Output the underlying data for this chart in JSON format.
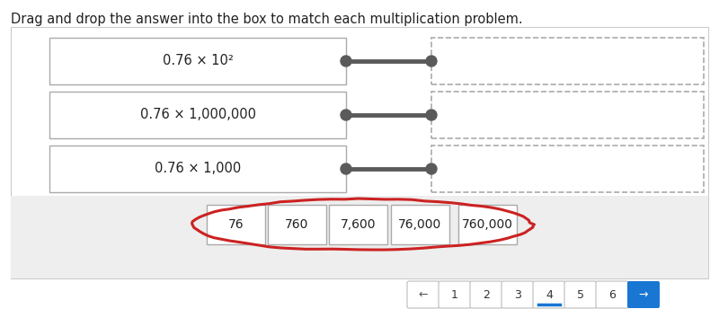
{
  "title": "Drag and drop the answer into the box to match each multiplication problem.",
  "title_fontsize": 10.5,
  "bg_color": "#ffffff",
  "problems": [
    "0.76 × 10²",
    "0.76 × 1,000,000",
    "0.76 × 1,000"
  ],
  "answer_labels": [
    "76",
    "760",
    "7,600",
    "76,000",
    "760,000"
  ],
  "nav_buttons": [
    "1",
    "2",
    "3",
    "4",
    "5",
    "6"
  ],
  "active_nav": 3,
  "nav_color": "#1976d2",
  "connector_color": "#5a5a5a",
  "box_border_color": "#aaaaaa",
  "dashed_border_color": "#aaaaaa",
  "red_outline_color": "#cc2222"
}
